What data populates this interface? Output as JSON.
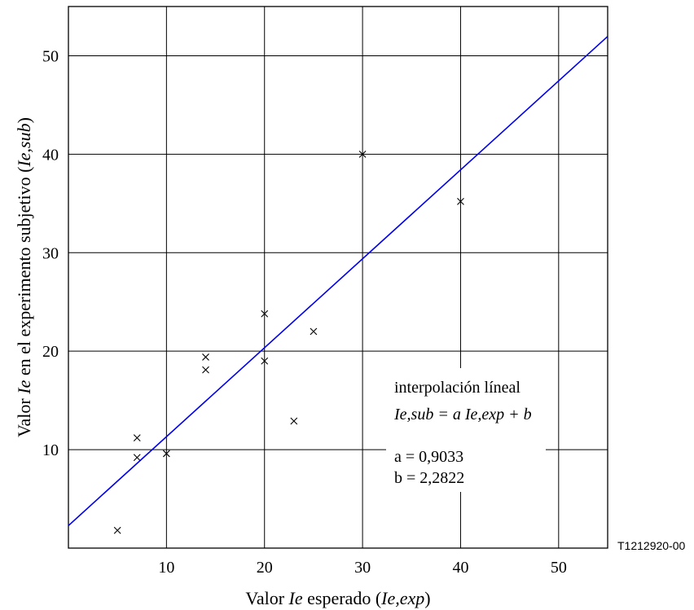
{
  "chart_data": {
    "type": "scatter",
    "xlabel": {
      "pre": "Valor ",
      "ie": "Ie",
      "mid": " esperado (",
      "sym": "Ie,exp",
      "post": ")"
    },
    "ylabel": {
      "pre": "Valor ",
      "ie": "Ie",
      "mid": " en el experimento subjetivo (",
      "sym": "Ie,sub",
      "post": ")"
    },
    "xlim": [
      0,
      55
    ],
    "ylim": [
      0,
      55
    ],
    "x_ticks": [
      10,
      20,
      30,
      40,
      50
    ],
    "y_ticks": [
      10,
      20,
      30,
      40,
      50
    ],
    "grid": true,
    "points": [
      {
        "x": 5,
        "y": 1.8
      },
      {
        "x": 7,
        "y": 9.2
      },
      {
        "x": 7,
        "y": 11.2
      },
      {
        "x": 10,
        "y": 9.6
      },
      {
        "x": 14,
        "y": 18.1
      },
      {
        "x": 14,
        "y": 19.4
      },
      {
        "x": 20,
        "y": 19.0
      },
      {
        "x": 20,
        "y": 23.8
      },
      {
        "x": 23,
        "y": 12.9
      },
      {
        "x": 25,
        "y": 22.0
      },
      {
        "x": 30,
        "y": 40.0
      },
      {
        "x": 40,
        "y": 35.2
      }
    ],
    "fit": {
      "a": 0.9033,
      "b": 2.2822,
      "color": "#0000ee"
    },
    "annotation": {
      "title": "interpolación líneal",
      "equation": "Ie,sub = a Ie,exp + b",
      "a_text": "a = 0,9033",
      "b_text": "b = 2,2822"
    },
    "figure_id": "T1212920-00",
    "marker_color": "#000000",
    "grid_color": "#000000"
  }
}
